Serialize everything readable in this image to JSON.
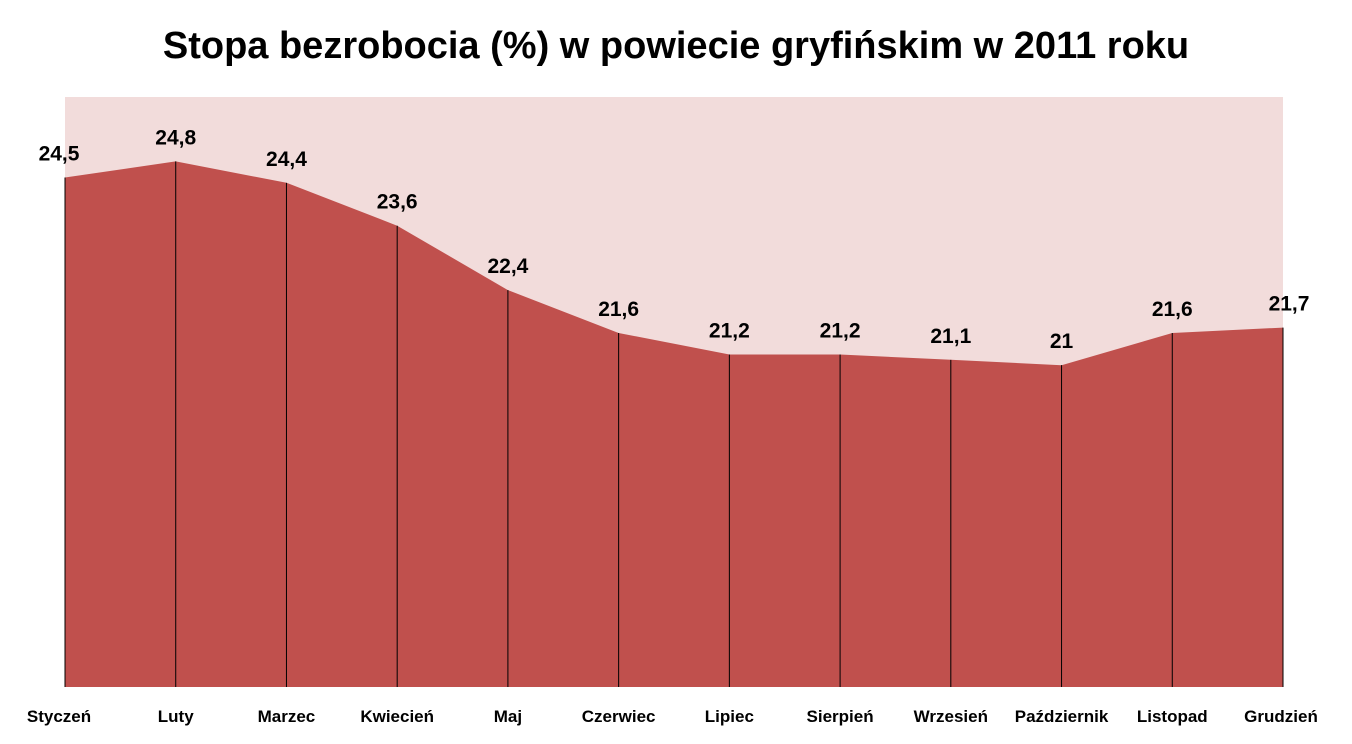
{
  "chart_data": {
    "type": "area",
    "title": "Stopa bezrobocia (%) w powiecie gryfińskim w 2011 roku",
    "xlabel": "",
    "ylabel": "",
    "categories": [
      "Styczeń",
      "Luty",
      "Marzec",
      "Kwiecień",
      "Maj",
      "Czerwiec",
      "Lipiec",
      "Sierpień",
      "Wrzesień",
      "Październik",
      "Listopad",
      "Grudzień"
    ],
    "series": [
      {
        "values": [
          24.5,
          24.8,
          24.4,
          23.6,
          22.4,
          21.6,
          21.2,
          21.2,
          21.1,
          21.0,
          21.6,
          21.7
        ],
        "data_labels": [
          "24,5",
          "24,8",
          "24,4",
          "23,6",
          "22,4",
          "21,6",
          "21,2",
          "21,2",
          "21,1",
          "21",
          "21,6",
          "21,7"
        ]
      }
    ],
    "ylim": [
      15,
      26
    ],
    "grid": false,
    "legend": "none",
    "colors": {
      "area_fill": "#c0504d",
      "plot_background": "#f2dcdb",
      "drop_lines": "#000000"
    }
  }
}
